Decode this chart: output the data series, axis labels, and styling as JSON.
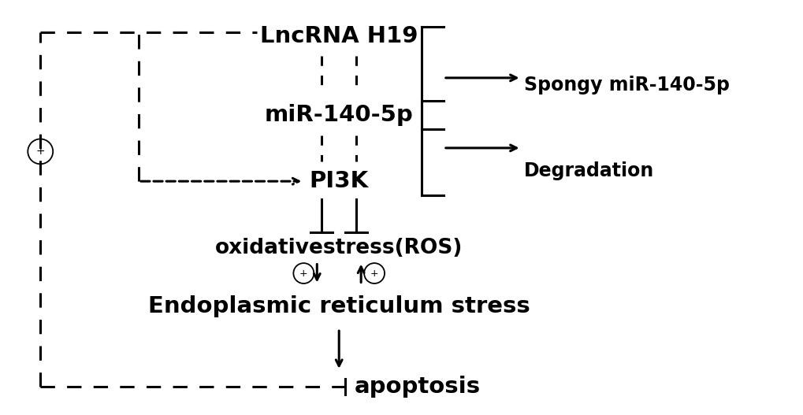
{
  "title": "LncRNA H19",
  "mir": "miR-140-5p",
  "pi3k": "PI3K",
  "ros": "oxidativestress(ROS)",
  "ers": "Endoplasmic reticulum stress",
  "apoptosis": "apoptosis",
  "spongy": "Spongy miR-140-5p",
  "degradation": "Degradation",
  "bg_color": "#ffffff",
  "text_color": "#000000",
  "line_color": "#000000",
  "dashed_color": "#000000",
  "figsize": [
    10.2,
    5.27
  ],
  "dpi": 100
}
